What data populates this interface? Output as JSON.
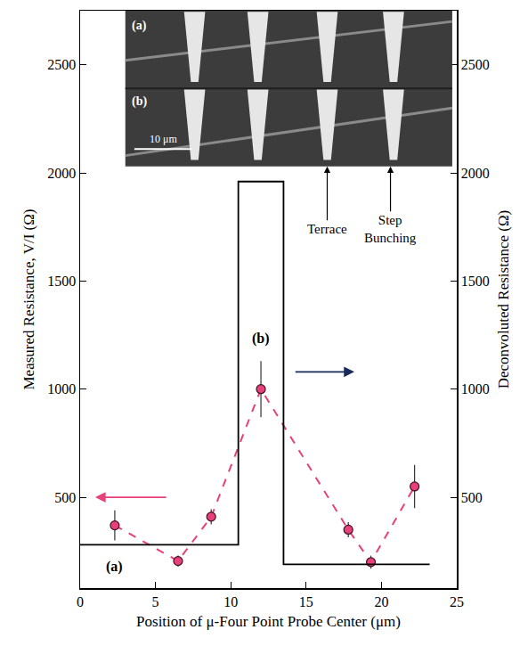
{
  "chart_data": {
    "type": "scatter",
    "x_label": "Position of μ-Four Point Probe Center (μm)",
    "y_label": "Measured Resistance, V/I (Ω)",
    "y2_label": "Deconvoluted Resistance (Ω)",
    "xlim": [
      0,
      25
    ],
    "xticks": [
      0,
      5,
      10,
      15,
      20,
      25
    ],
    "ylim": [
      80,
      2750
    ],
    "yticks": [
      500,
      1000,
      1500,
      2000,
      2500
    ],
    "y2lim": [
      80,
      2750
    ],
    "y2ticks": [
      500,
      1000,
      1500,
      2000,
      2500
    ],
    "grid": false,
    "series": [
      {
        "type": "scatter",
        "color": "#e8407a",
        "marker": "circle",
        "line_style": "dash",
        "x": [
          2.3,
          6.5,
          8.7,
          12.0,
          17.8,
          19.3,
          22.2
        ],
        "values": [
          370,
          205,
          410,
          1000,
          350,
          200,
          550
        ],
        "errors": [
          70,
          25,
          35,
          130,
          35,
          30,
          100
        ]
      },
      {
        "type": "line",
        "axis": "y2",
        "color": "#000000",
        "line_style": "step",
        "x": [
          0,
          10.5,
          13.5,
          23.2
        ],
        "values": [
          280,
          1960,
          190,
          190
        ]
      }
    ],
    "point_labels": [
      "(a)",
      "(b)"
    ],
    "inset": {
      "labels": [
        "(a)",
        "(b)"
      ],
      "scale_bar": "10 μm",
      "features": [
        "Terrace",
        "Step Bunching"
      ]
    }
  }
}
